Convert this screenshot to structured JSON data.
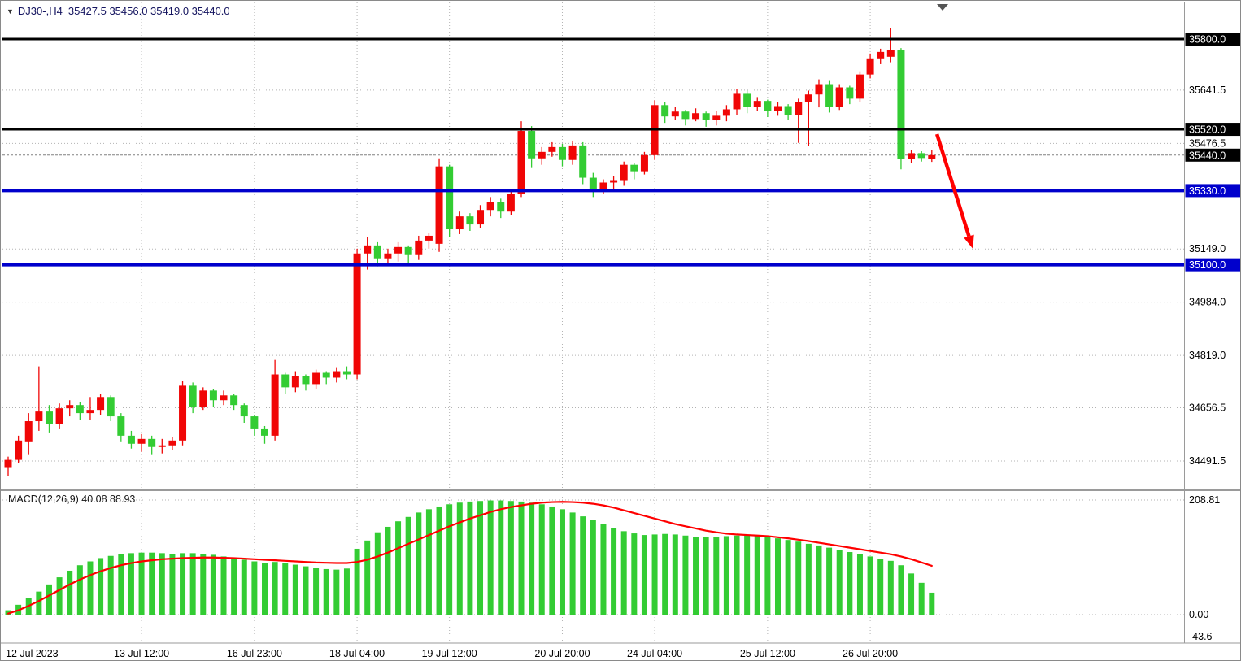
{
  "header": {
    "symbol_timeframe": "DJ30-,H4",
    "ohlc_readout": "35427.5 35456.0 35419.0 35440.0"
  },
  "chart_data": {
    "type": "candlestick",
    "symbol": "DJ30-",
    "timeframe": "H4",
    "ohlc_current": {
      "open": 35427.5,
      "high": 35456.0,
      "low": 35419.0,
      "close": 35440.0
    },
    "colors": {
      "up": "#f00606",
      "down": "#33cc33",
      "grid": "#b3b3b3",
      "background": "#ffffff",
      "level_black": "#000000",
      "level_blue": "#0000cc",
      "arrow": "#ff0000"
    },
    "y_ticks": [
      {
        "value": 35641.5,
        "label": "35641.5"
      },
      {
        "value": 35476.5,
        "label": "35476.5"
      },
      {
        "value": 35149.0,
        "label": "35149.0"
      },
      {
        "value": 34984.0,
        "label": "34984.0"
      },
      {
        "value": 34819.0,
        "label": "34819.0"
      },
      {
        "value": 34656.5,
        "label": "34656.5"
      },
      {
        "value": 34491.5,
        "label": "34491.5"
      }
    ],
    "price_lines": [
      {
        "value": 35800.0,
        "label": "35800.0",
        "color": "#000000",
        "width": 3,
        "kind": "level"
      },
      {
        "value": 35520.0,
        "label": "35520.0",
        "color": "#000000",
        "width": 3,
        "kind": "level"
      },
      {
        "value": 35440.0,
        "label": "35440.0",
        "color": "#000000",
        "width": 1,
        "kind": "current-price"
      },
      {
        "value": 35330.0,
        "label": "35330.0",
        "color": "#0000cc",
        "width": 4,
        "kind": "level"
      },
      {
        "value": 35100.0,
        "label": "35100.0",
        "color": "#0000cc",
        "width": 4,
        "kind": "level"
      }
    ],
    "x_labels": [
      {
        "index": 0,
        "label": "12 Jul 2023"
      },
      {
        "index": 13,
        "label": "13 Jul 12:00"
      },
      {
        "index": 24,
        "label": "16 Jul 23:00"
      },
      {
        "index": 34,
        "label": "18 Jul 04:00"
      },
      {
        "index": 43,
        "label": "19 Jul 12:00"
      },
      {
        "index": 54,
        "label": "20 Jul 20:00"
      },
      {
        "index": 63,
        "label": "24 Jul 04:00"
      },
      {
        "index": 74,
        "label": "25 Jul 12:00"
      },
      {
        "index": 84,
        "label": "26 Jul 20:00"
      }
    ],
    "candles": [
      [
        34470,
        34505,
        34445,
        34495
      ],
      [
        34495,
        34570,
        34485,
        34555
      ],
      [
        34550,
        34640,
        34510,
        34615
      ],
      [
        34615,
        34785,
        34585,
        34645
      ],
      [
        34645,
        34665,
        34580,
        34605
      ],
      [
        34605,
        34670,
        34590,
        34655
      ],
      [
        34655,
        34680,
        34630,
        34665
      ],
      [
        34665,
        34675,
        34620,
        34640
      ],
      [
        34640,
        34690,
        34620,
        34650
      ],
      [
        34650,
        34700,
        34635,
        34690
      ],
      [
        34690,
        34695,
        34615,
        34630
      ],
      [
        34630,
        34640,
        34550,
        34570
      ],
      [
        34570,
        34585,
        34530,
        34545
      ],
      [
        34545,
        34575,
        34520,
        34560
      ],
      [
        34560,
        34570,
        34510,
        34535
      ],
      [
        34535,
        34560,
        34515,
        34540
      ],
      [
        34540,
        34565,
        34525,
        34555
      ],
      [
        34555,
        34740,
        34540,
        34725
      ],
      [
        34725,
        34735,
        34640,
        34660
      ],
      [
        34660,
        34720,
        34650,
        34710
      ],
      [
        34710,
        34715,
        34660,
        34680
      ],
      [
        34680,
        34710,
        34665,
        34695
      ],
      [
        34695,
        34700,
        34650,
        34665
      ],
      [
        34665,
        34670,
        34610,
        34630
      ],
      [
        34630,
        34635,
        34570,
        34590
      ],
      [
        34590,
        34600,
        34545,
        34570
      ],
      [
        34570,
        34805,
        34555,
        34760
      ],
      [
        34760,
        34765,
        34700,
        34720
      ],
      [
        34720,
        34770,
        34705,
        34755
      ],
      [
        34755,
        34760,
        34710,
        34730
      ],
      [
        34730,
        34775,
        34715,
        34765
      ],
      [
        34765,
        34770,
        34730,
        34750
      ],
      [
        34750,
        34780,
        34735,
        34770
      ],
      [
        34770,
        34785,
        34745,
        34760
      ],
      [
        34760,
        35150,
        34745,
        35135
      ],
      [
        35135,
        35185,
        35085,
        35160
      ],
      [
        35160,
        35170,
        35095,
        35120
      ],
      [
        35120,
        35150,
        35100,
        35135
      ],
      [
        35135,
        35170,
        35110,
        35155
      ],
      [
        35155,
        35160,
        35105,
        35130
      ],
      [
        35130,
        35190,
        35115,
        35175
      ],
      [
        35175,
        35200,
        35150,
        35190
      ],
      [
        35165,
        35430,
        35140,
        35405
      ],
      [
        35405,
        35410,
        35185,
        35210
      ],
      [
        35210,
        35265,
        35195,
        35250
      ],
      [
        35250,
        35260,
        35205,
        35225
      ],
      [
        35225,
        35285,
        35215,
        35270
      ],
      [
        35270,
        35310,
        35250,
        35295
      ],
      [
        35295,
        35305,
        35245,
        35265
      ],
      [
        35265,
        35335,
        35255,
        35320
      ],
      [
        35320,
        35545,
        35310,
        35515
      ],
      [
        35515,
        35530,
        35400,
        35430
      ],
      [
        35430,
        35465,
        35410,
        35450
      ],
      [
        35450,
        35480,
        35435,
        35465
      ],
      [
        35465,
        35475,
        35405,
        35425
      ],
      [
        35425,
        35485,
        35410,
        35470
      ],
      [
        35470,
        35480,
        35350,
        35370
      ],
      [
        35370,
        35385,
        35310,
        35330
      ],
      [
        35330,
        35365,
        35320,
        35355
      ],
      [
        35355,
        35375,
        35335,
        35360
      ],
      [
        35360,
        35420,
        35345,
        35410
      ],
      [
        35410,
        35415,
        35365,
        35390
      ],
      [
        35390,
        35450,
        35380,
        35440
      ],
      [
        35440,
        35610,
        35425,
        35595
      ],
      [
        35595,
        35605,
        35540,
        35560
      ],
      [
        35560,
        35590,
        35548,
        35575
      ],
      [
        35575,
        35580,
        35532,
        35552
      ],
      [
        35552,
        35585,
        35545,
        35570
      ],
      [
        35570,
        35575,
        35528,
        35548
      ],
      [
        35548,
        35578,
        35532,
        35562
      ],
      [
        35562,
        35595,
        35545,
        35582
      ],
      [
        35582,
        35645,
        35565,
        35630
      ],
      [
        35630,
        35640,
        35570,
        35590
      ],
      [
        35590,
        35620,
        35578,
        35608
      ],
      [
        35608,
        35612,
        35558,
        35578
      ],
      [
        35578,
        35605,
        35562,
        35592
      ],
      [
        35592,
        35598,
        35548,
        35565
      ],
      [
        35565,
        35615,
        35478,
        35605
      ],
      [
        35605,
        35640,
        35468,
        35628
      ],
      [
        35628,
        35675,
        35588,
        35660
      ],
      [
        35660,
        35670,
        35572,
        35590
      ],
      [
        35590,
        35660,
        35580,
        35650
      ],
      [
        35650,
        35655,
        35598,
        35615
      ],
      [
        35615,
        35700,
        35605,
        35690
      ],
      [
        35690,
        35755,
        35678,
        35740
      ],
      [
        35740,
        35770,
        35722,
        35760
      ],
      [
        35745,
        35835,
        35728,
        35765
      ],
      [
        35765,
        35772,
        35396,
        35428
      ],
      [
        35428,
        35455,
        35416,
        35446
      ],
      [
        35446,
        35452,
        35420,
        35431
      ],
      [
        35427.5,
        35456.0,
        35419.0,
        35440.0
      ]
    ],
    "arrow": {
      "from_bar": 90.5,
      "from_price": 35505,
      "to_bar": 94,
      "to_price": 35150,
      "color": "#ff0000"
    },
    "macd": {
      "label": "MACD(12,26,9) 40.08 88.93",
      "name": "MACD(12,26,9)",
      "value_main": "40.08",
      "value_signal": "88.93",
      "hist_color": "#33cc33",
      "signal_color": "#ff0000",
      "axis": [
        {
          "value": 208.81,
          "label": "208.81"
        },
        {
          "value": 0,
          "label": "0.00"
        },
        {
          "value": -43.6,
          "label": "-43.6"
        }
      ],
      "histogram": [
        8,
        18,
        30,
        42,
        55,
        68,
        80,
        90,
        97,
        103,
        107,
        110,
        112,
        113,
        113,
        112,
        111,
        112,
        112,
        111,
        109,
        106,
        103,
        100,
        97,
        94,
        96,
        94,
        91,
        88,
        85,
        83,
        82,
        84,
        120,
        135,
        150,
        160,
        170,
        178,
        186,
        192,
        197,
        201,
        204,
        206,
        207,
        208,
        208,
        207,
        206,
        204,
        201,
        197,
        192,
        186,
        179,
        172,
        165,
        158,
        152,
        148,
        145,
        146,
        147,
        146,
        144,
        142,
        141,
        142,
        143,
        144,
        145,
        144,
        142,
        139,
        136,
        133,
        129,
        126,
        122,
        118,
        114,
        110,
        106,
        102,
        98,
        90,
        75,
        58,
        40.08
      ],
      "signal": [
        2,
        8,
        16,
        25,
        35,
        45,
        55,
        64,
        72,
        79,
        85,
        90,
        94,
        97,
        99,
        101,
        102,
        103,
        103.5,
        104,
        104,
        103.5,
        103,
        102,
        101,
        100,
        99,
        98,
        97,
        96,
        95,
        94.5,
        94,
        94,
        96,
        100,
        106,
        113,
        121,
        129,
        137,
        145,
        153,
        161,
        168,
        175,
        181,
        187,
        192,
        196,
        199,
        202,
        204,
        205,
        205.5,
        205,
        204,
        202,
        199,
        195,
        190,
        185,
        180,
        175,
        170,
        165,
        161,
        157,
        153,
        150,
        147.5,
        146,
        145,
        144,
        143,
        141,
        139,
        136.5,
        134,
        131,
        128,
        125,
        122,
        119,
        116,
        113,
        110,
        106,
        101,
        95,
        88.93
      ]
    }
  }
}
